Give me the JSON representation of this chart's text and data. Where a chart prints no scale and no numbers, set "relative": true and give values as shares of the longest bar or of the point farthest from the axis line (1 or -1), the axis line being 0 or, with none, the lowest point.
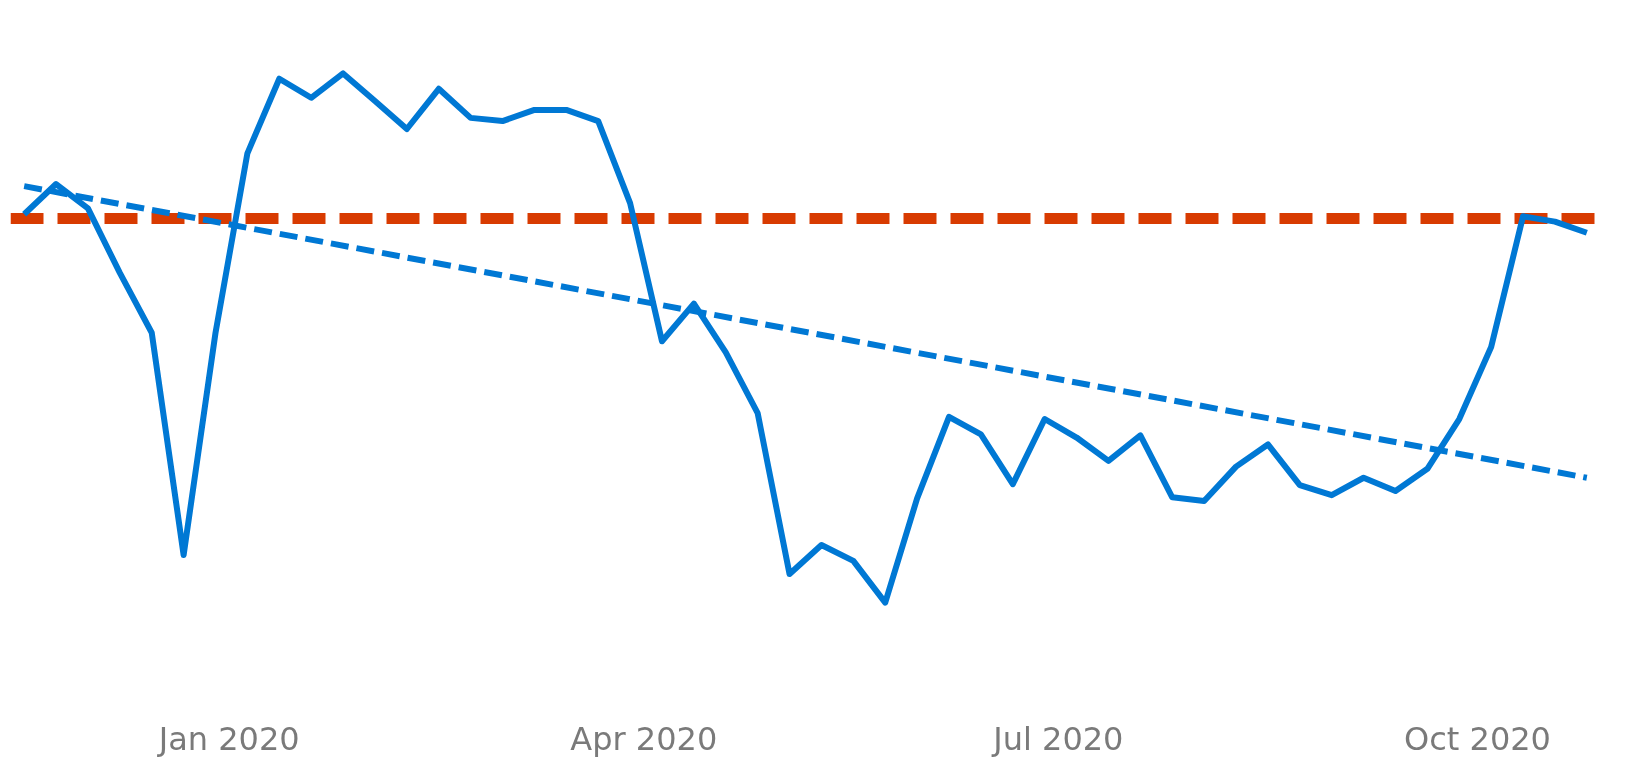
{
  "chart_data": {
    "type": "line",
    "relative": true,
    "x": [
      "2019-11-17",
      "2019-11-24",
      "2019-12-01",
      "2019-12-08",
      "2019-12-15",
      "2019-12-22",
      "2019-12-29",
      "2020-01-05",
      "2020-01-12",
      "2020-01-19",
      "2020-01-26",
      "2020-02-02",
      "2020-02-09",
      "2020-02-16",
      "2020-02-23",
      "2020-03-01",
      "2020-03-08",
      "2020-03-15",
      "2020-03-22",
      "2020-03-29",
      "2020-04-05",
      "2020-04-12",
      "2020-04-19",
      "2020-04-26",
      "2020-05-03",
      "2020-05-10",
      "2020-05-17",
      "2020-05-24",
      "2020-05-31",
      "2020-06-07",
      "2020-06-14",
      "2020-06-21",
      "2020-06-28",
      "2020-07-05",
      "2020-07-12",
      "2020-07-19",
      "2020-07-26",
      "2020-08-02",
      "2020-08-09",
      "2020-08-16",
      "2020-08-23",
      "2020-08-30",
      "2020-09-06",
      "2020-09-13",
      "2020-09-20",
      "2020-09-27",
      "2020-10-04",
      "2020-10-11",
      "2020-10-18",
      "2020-10-25"
    ],
    "series": [
      {
        "color": "#0078d4",
        "line_style": "solid",
        "values": [
          0.734,
          0.791,
          0.745,
          0.623,
          0.51,
          0.09,
          0.51,
          0.849,
          0.99,
          0.954,
          1.0,
          0.948,
          0.895,
          0.971,
          0.916,
          0.91,
          0.931,
          0.931,
          0.91,
          0.755,
          0.494,
          0.565,
          0.473,
          0.358,
          0.054,
          0.109,
          0.079,
          0.0,
          0.197,
          0.351,
          0.318,
          0.224,
          0.347,
          0.312,
          0.268,
          0.316,
          0.199,
          0.192,
          0.257,
          0.299,
          0.222,
          0.203,
          0.236,
          0.211,
          0.253,
          0.347,
          0.483,
          0.73,
          0.72,
          0.699
        ]
      },
      {
        "type": "line",
        "color": "#0078d4",
        "line_style": "dashed",
        "x": [
          "2019-11-17",
          "2020-10-25"
        ],
        "values": [
          0.787,
          0.236
        ]
      }
    ],
    "ref_lines": [
      {
        "axis": "y",
        "value": 0.726,
        "color": "#d83b01",
        "line_style": "dashed"
      }
    ],
    "xlim": [
      "2019-11-14",
      "2020-10-28"
    ],
    "xticks": [
      {
        "value": "2020-01-01",
        "label": "Jan 2020"
      },
      {
        "value": "2020-04-01",
        "label": "Apr 2020"
      },
      {
        "value": "2020-07-01",
        "label": "Jul 2020"
      },
      {
        "value": "2020-10-01",
        "label": "Oct 2020"
      }
    ],
    "grid": false
  }
}
